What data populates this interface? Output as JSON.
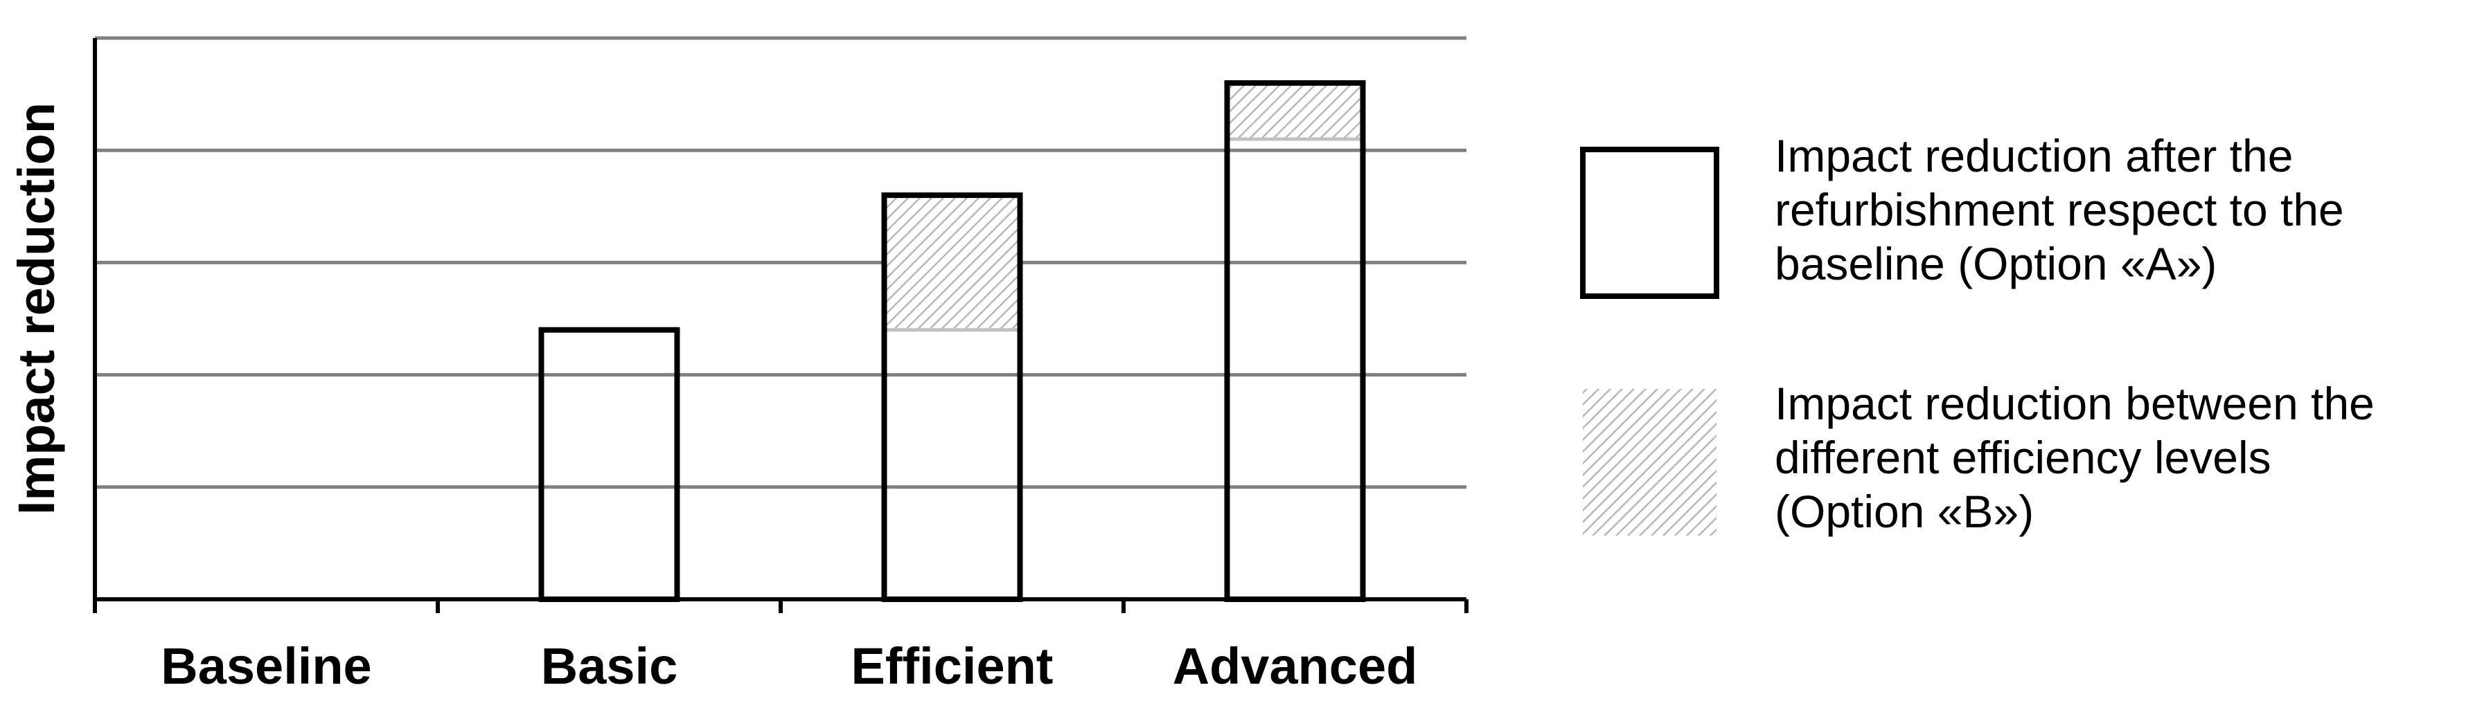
{
  "chart_data": {
    "type": "bar",
    "stacked": true,
    "categories": [
      "Baseline",
      "Basic",
      "Efficient",
      "Advanced"
    ],
    "series": [
      {
        "name": "Impact reduction after the refurbishment respect to the baseline (Option «A»)",
        "values": [
          0,
          2.4,
          2.4,
          4.1
        ],
        "style": "white-fill-black-outline"
      },
      {
        "name": "Impact reduction between the different efficiency levels (Option «B»)",
        "values": [
          0,
          0,
          1.2,
          0.5
        ],
        "style": "gray-hatched"
      }
    ],
    "title": "",
    "xlabel": "",
    "ylabel": "Impact reduction",
    "ylim": [
      0,
      5
    ],
    "y_tick_labels": false,
    "grid": true,
    "legend_position": "right"
  },
  "legend": {
    "items": [
      {
        "lines": [
          "Impact reduction after the",
          "refurbishment respect to the",
          "baseline (Option «A»)"
        ]
      },
      {
        "lines": [
          "Impact reduction between the",
          "different efficiency levels",
          "(Option «B»)"
        ]
      }
    ]
  },
  "colors": {
    "outline": "#000000",
    "grid": "#808080",
    "hatch": "#c0c0c0",
    "background": "#ffffff"
  }
}
